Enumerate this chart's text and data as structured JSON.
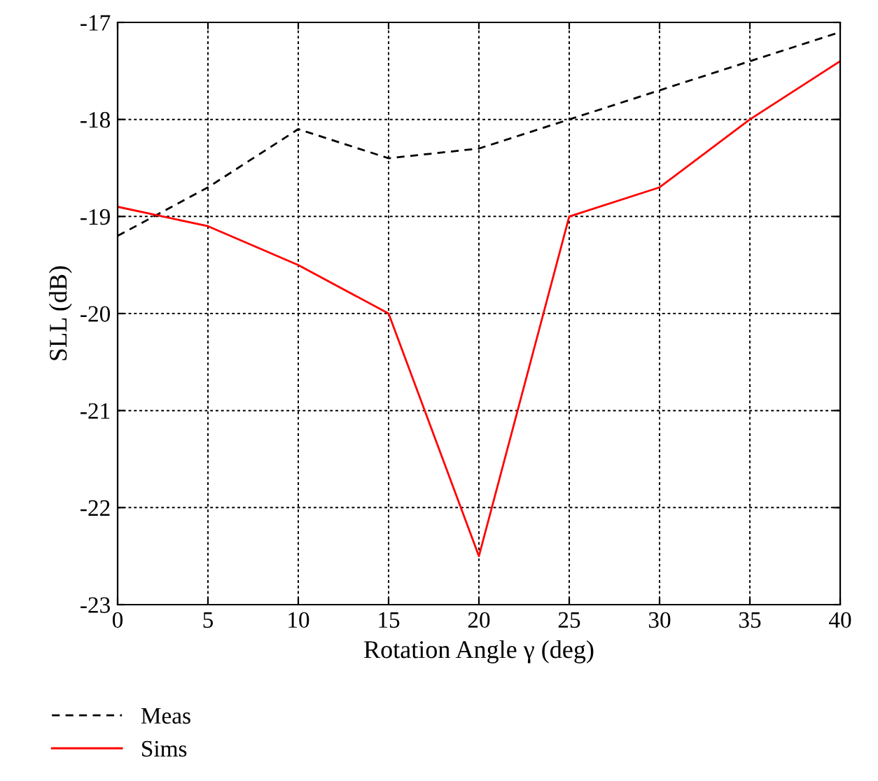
{
  "chart_data": {
    "type": "line",
    "xlabel": "Rotation Angle γ (deg)",
    "ylabel": "SLL (dB)",
    "x": [
      0,
      5,
      10,
      15,
      20,
      25,
      30,
      35,
      40
    ],
    "series": [
      {
        "name": "Meas",
        "color": "#000000",
        "line_style": "dashed",
        "values": [
          -19.2,
          -18.7,
          -18.1,
          -18.4,
          -18.3,
          -18.0,
          -17.7,
          -17.4,
          -17.1
        ]
      },
      {
        "name": "Sims",
        "color": "#ff0000",
        "line_style": "solid",
        "values": [
          -18.9,
          -19.1,
          -19.5,
          -20.0,
          -22.5,
          -19.0,
          -18.7,
          -18.0,
          -17.4
        ]
      }
    ],
    "xlim": [
      0,
      40
    ],
    "xticks": [
      0,
      5,
      10,
      15,
      20,
      25,
      30,
      35,
      40
    ],
    "ylim": [
      -23,
      -17
    ],
    "yticks": [
      -23,
      -22,
      -21,
      -20,
      -19,
      -18,
      -17
    ],
    "grid": true,
    "legend": "bottom left"
  }
}
